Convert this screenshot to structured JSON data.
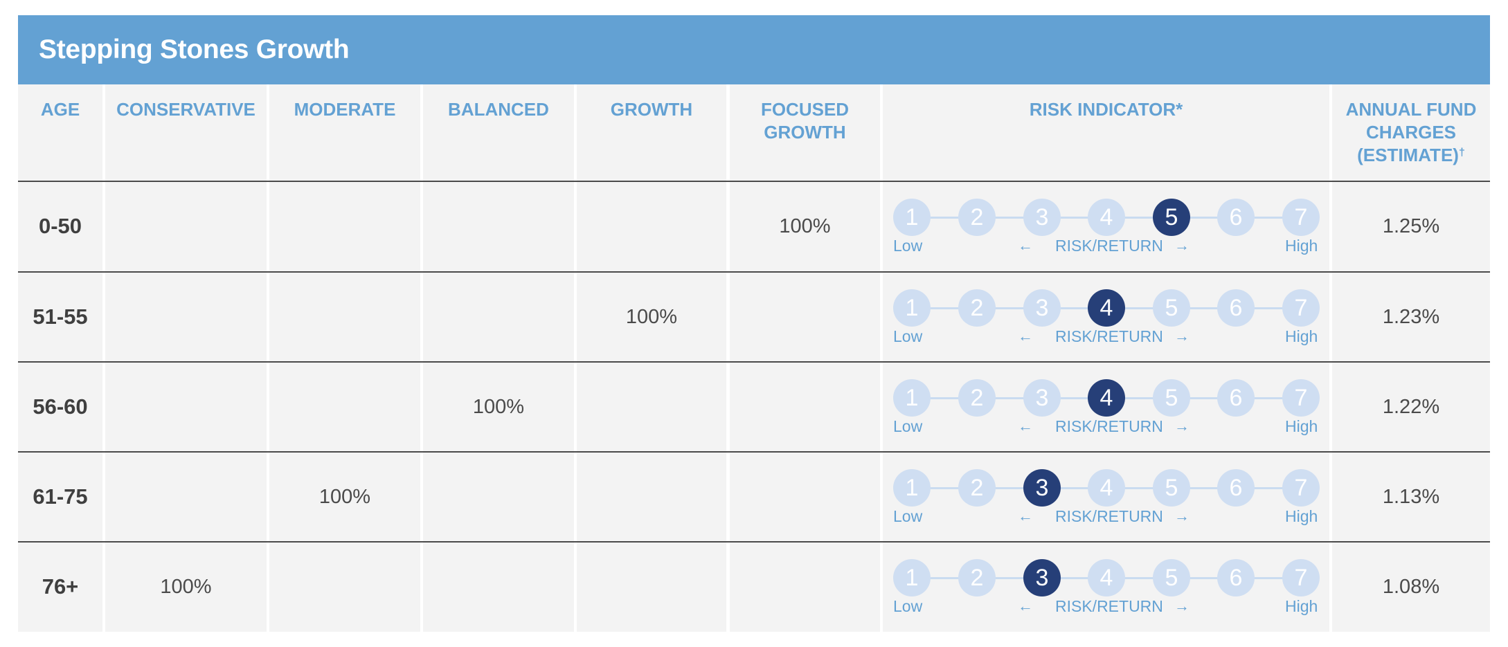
{
  "title": "Stepping Stones Growth",
  "headers": {
    "age": "AGE",
    "conservative": "CONSERVATIVE",
    "moderate": "MODERATE",
    "balanced": "BALANCED",
    "growth": "GROWTH",
    "focused_growth": "FOCUSED\nGROWTH",
    "risk_indicator": "RISK INDICATOR*",
    "annual_fund_charges": "ANNUAL FUND\nCHARGES\n(ESTIMATE)",
    "annual_fund_charges_mark": "†"
  },
  "risk_labels": {
    "low": "Low",
    "high": "High",
    "risk_return": "RISK/RETURN",
    "scale": [
      "1",
      "2",
      "3",
      "4",
      "5",
      "6",
      "7"
    ]
  },
  "colors": {
    "title_bar": "#63a1d3",
    "header_text": "#63a1d3",
    "cell_background": "#f3f3f3",
    "active_dot": "#263f78",
    "inactive_dot": "#cfdef2"
  },
  "rows": [
    {
      "age": "0-50",
      "conservative": "",
      "moderate": "",
      "balanced": "",
      "growth": "",
      "focused_growth": "100%",
      "risk_level": 5,
      "charge": "1.25%"
    },
    {
      "age": "51-55",
      "conservative": "",
      "moderate": "",
      "balanced": "",
      "growth": "100%",
      "focused_growth": "",
      "risk_level": 4,
      "charge": "1.23%"
    },
    {
      "age": "56-60",
      "conservative": "",
      "moderate": "",
      "balanced": "100%",
      "growth": "",
      "focused_growth": "",
      "risk_level": 4,
      "charge": "1.22%"
    },
    {
      "age": "61-75",
      "conservative": "",
      "moderate": "100%",
      "balanced": "",
      "growth": "",
      "focused_growth": "",
      "risk_level": 3,
      "charge": "1.13%"
    },
    {
      "age": "76+",
      "conservative": "100%",
      "moderate": "",
      "balanced": "",
      "growth": "",
      "focused_growth": "",
      "risk_level": 3,
      "charge": "1.08%"
    }
  ]
}
